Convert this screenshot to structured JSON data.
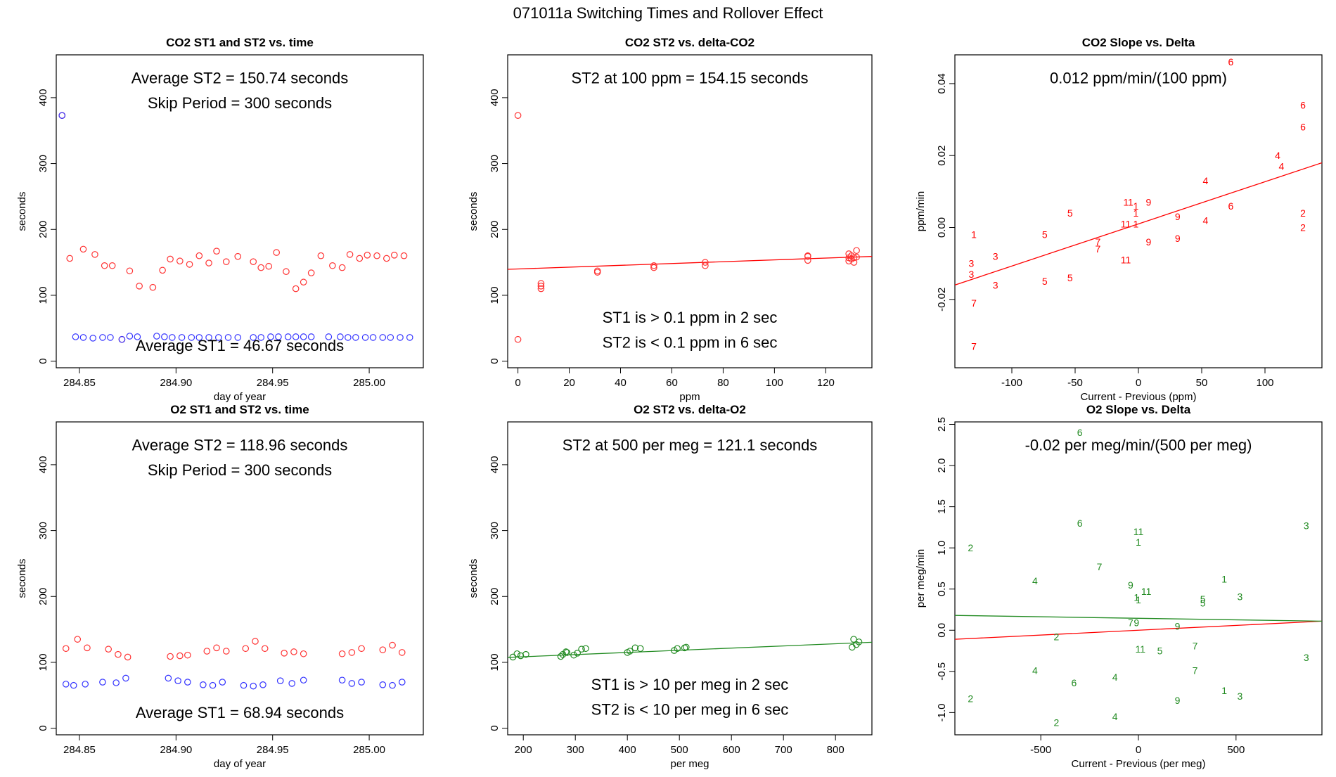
{
  "page_title": "071011a   Switching Times and Rollover Effect",
  "colors": {
    "st2": "#ff3333",
    "st1": "#3333ff",
    "o2": "#228b22",
    "line": "#ff0000"
  },
  "chart_data": [
    {
      "type": "scatter",
      "title": "CO2 ST1 and ST2 vs. time",
      "xlabel": "day of year",
      "ylabel": "seconds",
      "xlim": [
        284.838,
        285.028
      ],
      "ylim": [
        -10,
        465
      ],
      "xticks": [
        284.85,
        284.9,
        284.95,
        285.0
      ],
      "xtick_labels": [
        "284.85",
        "284.90",
        "284.95",
        "285.00"
      ],
      "yticks": [
        0,
        100,
        200,
        300,
        400
      ],
      "ytick_labels": [
        "0",
        "100",
        "200",
        "300",
        "400"
      ],
      "annotations": [
        {
          "text": "Average ST2 =  150.74  seconds",
          "ax": 0.5,
          "ay": 0.075
        },
        {
          "text": "Skip Period =  300  seconds",
          "ax": 0.5,
          "ay": 0.155
        },
        {
          "text": "Average ST1 =  46.67  seconds",
          "ax": 0.5,
          "ay": 0.93
        }
      ],
      "series": [
        {
          "name": "ST2",
          "color": "#ff3333",
          "marker": "circle",
          "x": [
            284.841,
            284.845,
            284.852,
            284.858,
            284.863,
            284.867,
            284.872,
            284.876,
            284.881,
            284.888,
            284.893,
            284.897,
            284.902,
            284.907,
            284.912,
            284.917,
            284.921,
            284.926,
            284.932,
            284.94,
            284.944,
            284.948,
            284.952,
            284.957,
            284.962,
            284.966,
            284.97,
            284.975,
            284.981,
            284.986,
            284.99,
            284.995,
            284.999,
            285.004,
            285.009,
            285.013,
            285.018
          ],
          "y": [
            373,
            156,
            170,
            162,
            145,
            145,
            33,
            137,
            114,
            112,
            138,
            155,
            152,
            147,
            160,
            149,
            167,
            151,
            159,
            151,
            142,
            144,
            165,
            136,
            110,
            120,
            134,
            160,
            145,
            142,
            162,
            156,
            161,
            160,
            156,
            161,
            160
          ]
        },
        {
          "name": "ST1",
          "color": "#3333ff",
          "marker": "circle",
          "x": [
            284.841,
            284.848,
            284.852,
            284.857,
            284.862,
            284.866,
            284.872,
            284.876,
            284.88,
            284.89,
            284.894,
            284.898,
            284.903,
            284.908,
            284.912,
            284.917,
            284.922,
            284.927,
            284.932,
            284.94,
            284.944,
            284.949,
            284.953,
            284.958,
            284.962,
            284.966,
            284.97,
            284.979,
            284.985,
            284.989,
            284.993,
            284.998,
            285.002,
            285.007,
            285.011,
            285.016,
            285.021
          ],
          "y": [
            373,
            37,
            36,
            35,
            36,
            36,
            33,
            38,
            37,
            38,
            37,
            36,
            36,
            36,
            36,
            36,
            36,
            36,
            36,
            36,
            36,
            37,
            37,
            37,
            37,
            37,
            37,
            37,
            37,
            36,
            36,
            36,
            36,
            36,
            36,
            36,
            36
          ]
        }
      ]
    },
    {
      "type": "scatter",
      "title": "CO2 ST2 vs. delta-CO2",
      "xlabel": "ppm",
      "ylabel": "seconds",
      "xlim": [
        -4,
        138
      ],
      "ylim": [
        -10,
        465
      ],
      "xticks": [
        0,
        20,
        40,
        60,
        80,
        100,
        120
      ],
      "xtick_labels": [
        "0",
        "20",
        "40",
        "60",
        "80",
        "100",
        "120"
      ],
      "yticks": [
        0,
        100,
        200,
        300,
        400
      ],
      "ytick_labels": [
        "0",
        "100",
        "200",
        "300",
        "400"
      ],
      "annotations": [
        {
          "text": "ST2 at 100 ppm =  154.15  seconds",
          "ax": 0.5,
          "ay": 0.075
        },
        {
          "text": "ST1 is > 0.1 ppm in 2 sec",
          "ax": 0.5,
          "ay": 0.84
        },
        {
          "text": "ST2 is < 0.1 ppm in 6 sec",
          "ax": 0.5,
          "ay": 0.92
        }
      ],
      "fit_line": {
        "color": "#ff0000",
        "x": [
          -4,
          138
        ],
        "y": [
          139.4,
          159.0
        ]
      },
      "series": [
        {
          "name": "ST2",
          "color": "#ff3333",
          "marker": "circle",
          "x": [
            0,
            0,
            9,
            9,
            9,
            31,
            31,
            53,
            53,
            73,
            73,
            113,
            113,
            113,
            129,
            129,
            129,
            130,
            130,
            131,
            131,
            132,
            132
          ],
          "y": [
            373,
            33,
            110,
            114,
            118,
            135,
            137,
            142,
            145,
            145,
            150,
            153,
            159,
            160,
            152,
            157,
            163,
            155,
            160,
            150,
            157,
            158,
            168
          ]
        }
      ]
    },
    {
      "type": "scatter",
      "title": "CO2 Slope vs. Delta",
      "xlabel": "Current - Previous (ppm)",
      "ylabel": "ppm/min",
      "xlim": [
        -145,
        145
      ],
      "ylim": [
        -0.039,
        0.048
      ],
      "xticks": [
        -100,
        -50,
        0,
        50,
        100
      ],
      "xtick_labels": [
        "-100",
        "-50",
        "0",
        "50",
        "100"
      ],
      "yticks": [
        -0.02,
        0.0,
        0.02,
        0.04
      ],
      "ytick_labels": [
        "-0.02",
        "0.00",
        "0.02",
        "0.04"
      ],
      "annotations": [
        {
          "text": "0.012  ppm/min/(100 ppm)",
          "ax": 0.5,
          "ay": 0.075
        }
      ],
      "fit_line": {
        "color": "#ff0000",
        "x": [
          -145,
          145
        ],
        "y": [
          -0.016,
          0.018
        ]
      },
      "series": [
        {
          "name": "labels",
          "color": "#ff0000",
          "marker": "text",
          "x": [
            -130,
            -132,
            -132,
            -130,
            -130,
            -113,
            -113,
            -74,
            -74,
            -54,
            -54,
            -32,
            -32,
            -10,
            -10,
            -8,
            -2,
            -2,
            -2,
            8,
            8,
            31,
            31,
            53,
            53,
            73,
            73,
            110,
            113,
            130,
            130,
            130,
            130
          ],
          "y": [
            -0.002,
            -0.01,
            -0.013,
            -0.021,
            -0.033,
            -0.008,
            -0.016,
            -0.002,
            -0.015,
            0.004,
            -0.014,
            -0.004,
            -0.006,
            -0.009,
            0.001,
            0.007,
            0.006,
            0.004,
            0.001,
            0.007,
            -0.004,
            0.003,
            -0.003,
            0.013,
            0.002,
            0.006,
            0.046,
            0.02,
            0.017,
            0.034,
            0.028,
            0.004,
            0.0
          ],
          "labels": [
            "1",
            "3",
            "3",
            "7",
            "7",
            "3",
            "3",
            "5",
            "5",
            "5",
            "5",
            "7",
            "7",
            "11",
            "11",
            "11",
            "1",
            "1",
            "1",
            "9",
            "9",
            "9",
            "9",
            "4",
            "4",
            "6",
            "6",
            "4",
            "4",
            "6",
            "6",
            "2",
            "2"
          ]
        }
      ]
    },
    {
      "type": "scatter",
      "title": "O2 ST1 and ST2 vs. time",
      "xlabel": "day of year",
      "ylabel": "seconds",
      "xlim": [
        284.838,
        285.028
      ],
      "ylim": [
        -10,
        465
      ],
      "xticks": [
        284.85,
        284.9,
        284.95,
        285.0
      ],
      "xtick_labels": [
        "284.85",
        "284.90",
        "284.95",
        "285.00"
      ],
      "yticks": [
        0,
        100,
        200,
        300,
        400
      ],
      "ytick_labels": [
        "0",
        "100",
        "200",
        "300",
        "400"
      ],
      "annotations": [
        {
          "text": "Average ST2 =  118.96  seconds",
          "ax": 0.5,
          "ay": 0.075
        },
        {
          "text": "Skip Period =  300  seconds",
          "ax": 0.5,
          "ay": 0.155
        },
        {
          "text": "Average ST1 =  68.94  seconds",
          "ax": 0.5,
          "ay": 0.93
        }
      ],
      "series": [
        {
          "name": "ST2",
          "color": "#ff3333",
          "marker": "circle",
          "x": [
            284.843,
            284.849,
            284.854,
            284.865,
            284.87,
            284.875,
            284.897,
            284.902,
            284.906,
            284.916,
            284.921,
            284.926,
            284.936,
            284.941,
            284.946,
            284.956,
            284.961,
            284.966,
            284.986,
            284.991,
            284.996,
            285.007,
            285.012,
            285.017
          ],
          "y": [
            121,
            135,
            122,
            120,
            112,
            108,
            109,
            110,
            111,
            117,
            122,
            117,
            121,
            132,
            121,
            114,
            116,
            113,
            113,
            115,
            121,
            119,
            126,
            115
          ]
        },
        {
          "name": "ST1",
          "color": "#3333ff",
          "marker": "circle",
          "x": [
            284.843,
            284.847,
            284.853,
            284.862,
            284.869,
            284.874,
            284.896,
            284.901,
            284.906,
            284.914,
            284.919,
            284.924,
            284.935,
            284.94,
            284.945,
            284.954,
            284.96,
            284.966,
            284.986,
            284.991,
            284.996,
            285.007,
            285.012,
            285.017
          ],
          "y": [
            67,
            65,
            67,
            70,
            69,
            76,
            76,
            72,
            70,
            66,
            65,
            70,
            65,
            64,
            66,
            72,
            68,
            73,
            73,
            68,
            70,
            66,
            65,
            70
          ]
        }
      ]
    },
    {
      "type": "scatter",
      "title": "O2 ST2 vs. delta-O2",
      "xlabel": "per meg",
      "ylabel": "seconds",
      "xlim": [
        170,
        870
      ],
      "ylim": [
        -10,
        465
      ],
      "xticks": [
        200,
        300,
        400,
        500,
        600,
        700,
        800
      ],
      "xtick_labels": [
        "200",
        "300",
        "400",
        "500",
        "600",
        "700",
        "800"
      ],
      "yticks": [
        0,
        100,
        200,
        300,
        400
      ],
      "ytick_labels": [
        "0",
        "100",
        "200",
        "300",
        "400"
      ],
      "annotations": [
        {
          "text": "ST2 at 500 per meg =  121.1  seconds",
          "ax": 0.5,
          "ay": 0.075
        },
        {
          "text": "ST1 is > 10 per meg in 2 sec",
          "ax": 0.5,
          "ay": 0.84
        },
        {
          "text": "ST2 is < 10 per meg in 6 sec",
          "ax": 0.5,
          "ay": 0.92
        }
      ],
      "fit_line": {
        "color": "#228b22",
        "x": [
          170,
          870
        ],
        "y": [
          107.5,
          130.5
        ]
      },
      "series": [
        {
          "name": "ST2",
          "color": "#228b22",
          "marker": "circle",
          "x": [
            180,
            188,
            195,
            205,
            272,
            276,
            282,
            284,
            297,
            304,
            312,
            320,
            400,
            405,
            415,
            425,
            490,
            496,
            510,
            513,
            832,
            835,
            840,
            845
          ],
          "y": [
            108,
            113,
            110,
            112,
            109,
            112,
            116,
            115,
            111,
            114,
            120,
            121,
            115,
            117,
            122,
            121,
            118,
            121,
            122,
            123,
            123,
            135,
            127,
            131
          ]
        }
      ]
    },
    {
      "type": "scatter",
      "title": "O2 Slope vs. Delta",
      "xlabel": "Current - Previous (per meg)",
      "ylabel": "per meg/min",
      "xlim": [
        -940,
        940
      ],
      "ylim": [
        -1.27,
        2.53
      ],
      "xticks": [
        -500,
        0,
        500
      ],
      "xtick_labels": [
        "-500",
        "0",
        "500"
      ],
      "yticks": [
        -1.0,
        -0.5,
        0.0,
        0.5,
        1.0,
        1.5,
        2.0,
        2.5
      ],
      "ytick_labels": [
        "-1.0",
        "-0.5",
        "0.0",
        "0.5",
        "1.0",
        "1.5",
        "2.0",
        "2.5"
      ],
      "annotations": [
        {
          "text": "-0.02  per meg/min/(500 per meg)",
          "ax": 0.5,
          "ay": 0.075
        }
      ],
      "fit_line": {
        "color": "#228b22",
        "x": [
          -940,
          940
        ],
        "y": [
          0.18,
          0.11
        ]
      },
      "fit_line2": {
        "color": "#ff0000",
        "x": [
          -940,
          940
        ],
        "y": [
          -0.11,
          0.11
        ]
      },
      "series": [
        {
          "name": "labels",
          "color": "#228b22",
          "marker": "text",
          "x": [
            -300,
            -860,
            -530,
            -300,
            -200,
            -40,
            -10,
            -10,
            0,
            0,
            40,
            10,
            -860,
            -420,
            -530,
            -330,
            -120,
            -40,
            0,
            110,
            200,
            290,
            290,
            330,
            330,
            440,
            440,
            520,
            520,
            860,
            860,
            -120,
            -420,
            200
          ],
          "y": [
            2.4,
            1.0,
            0.6,
            1.3,
            0.77,
            0.55,
            0.4,
            0.09,
            1.07,
            1.2,
            0.47,
            -0.23,
            -0.83,
            -0.08,
            -0.49,
            -0.64,
            -0.57,
            0.09,
            0.37,
            -0.25,
            0.05,
            -0.19,
            -0.49,
            0.38,
            0.33,
            0.62,
            -0.73,
            0.41,
            -0.8,
            1.27,
            -0.33,
            -1.05,
            -1.12,
            -0.85
          ],
          "labels": [
            "6",
            "2",
            "4",
            "6",
            "7",
            "9",
            "1",
            "9",
            "1",
            "11",
            "11",
            "11",
            "2",
            "2",
            "4",
            "6",
            "4",
            "7",
            "1",
            "5",
            "9",
            "7",
            "7",
            "5",
            "5",
            "1",
            "1",
            "3",
            "3",
            "3",
            "3",
            "4",
            "2",
            "9"
          ]
        }
      ]
    }
  ]
}
